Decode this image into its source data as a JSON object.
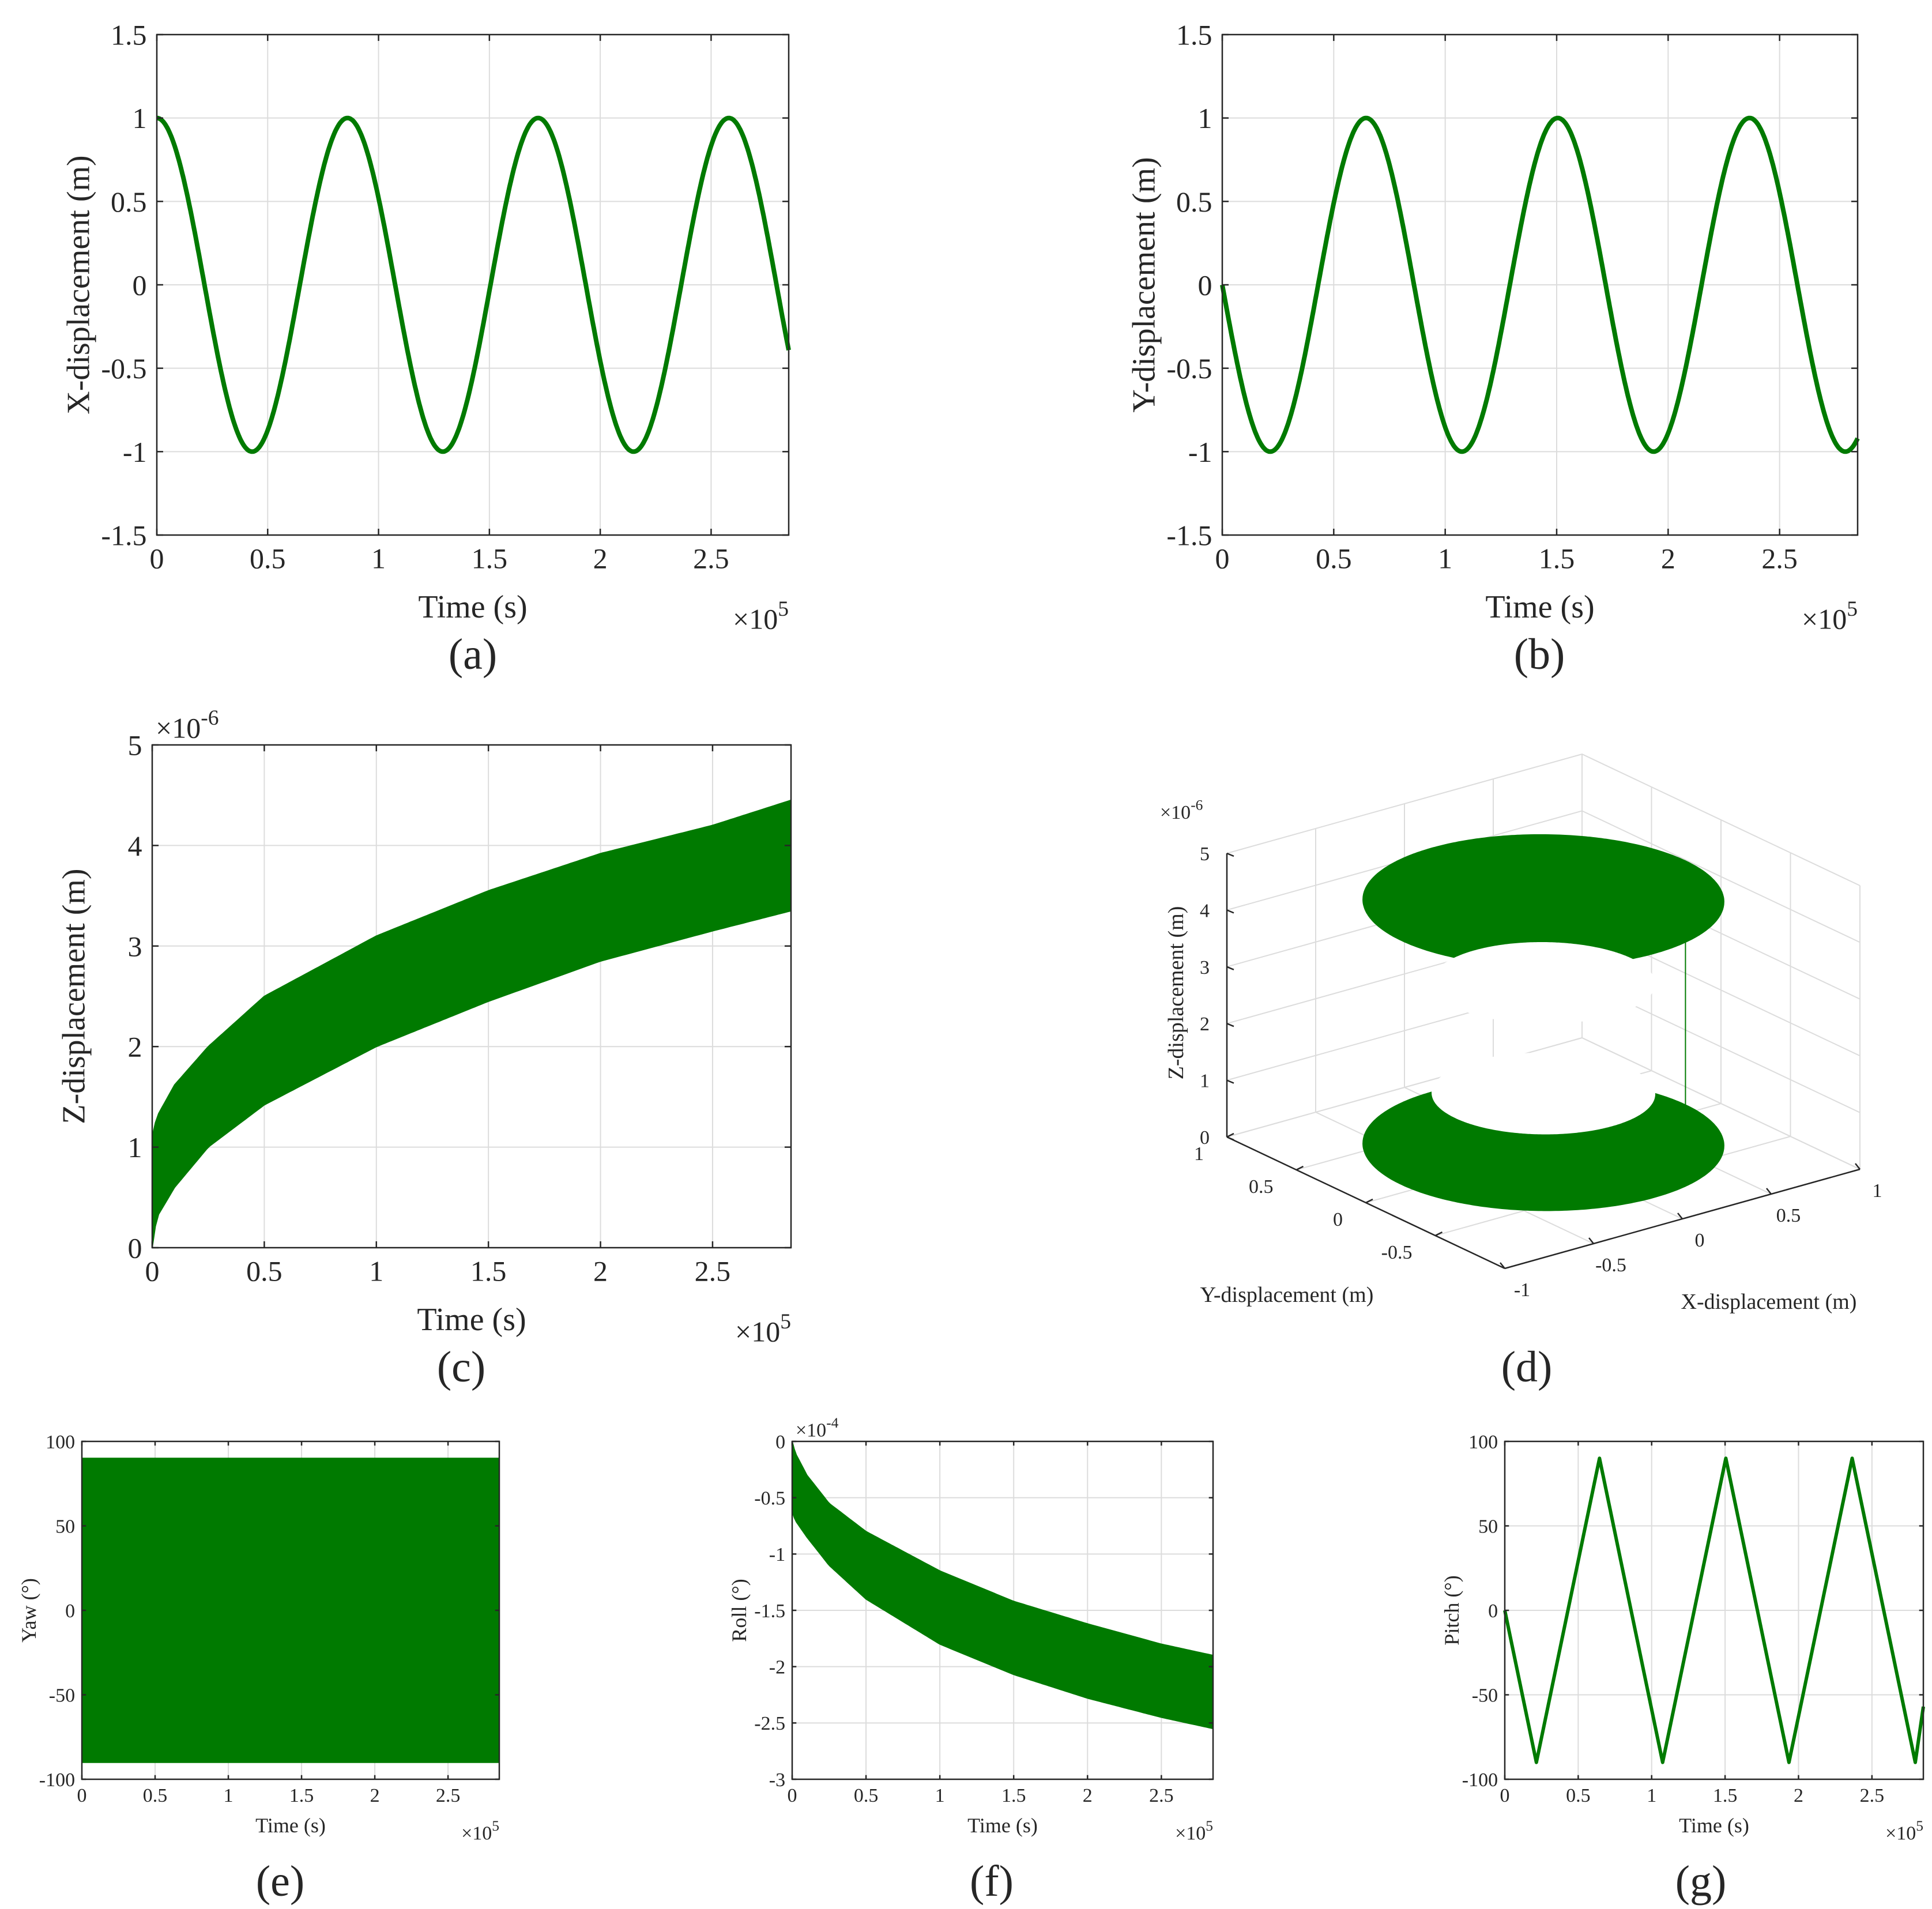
{
  "colors": {
    "series": "#007a00",
    "grid": "#dcdcdc",
    "axis": "#262626"
  },
  "chart_data": [
    {
      "id": "a",
      "panel_label": "(a)",
      "type": "line",
      "xlabel": "Time (s)",
      "ylabel": "X-displacement (m)",
      "xlim": [
        0,
        2.85
      ],
      "ylim": [
        -1.5,
        1.5
      ],
      "xticks": [
        "0",
        "0.5",
        "1",
        "1.5",
        "2",
        "2.5"
      ],
      "xtick_values": [
        0,
        0.5,
        1,
        1.5,
        2,
        2.5
      ],
      "yticks": [
        "-1.5",
        "-1",
        "-0.5",
        "0",
        "0.5",
        "1",
        "1.5"
      ],
      "ytick_values": [
        -1.5,
        -1,
        -0.5,
        0,
        0.5,
        1,
        1.5
      ],
      "x_exponent_label": "×10",
      "x_exponent": "5",
      "grid": true,
      "series": [
        {
          "x": [
            0,
            0.215,
            0.43,
            0.645,
            0.86,
            1.075,
            1.29,
            1.505,
            1.72,
            1.935,
            2.15,
            2.365,
            2.58,
            2.85
          ],
          "y": [
            1,
            0,
            -1,
            0,
            1,
            0,
            -1,
            0,
            1,
            0,
            -1,
            0,
            1,
            -0.53
          ]
        }
      ]
    },
    {
      "id": "b",
      "panel_label": "(b)",
      "type": "line",
      "xlabel": "Time (s)",
      "ylabel": "Y-displacement (m)",
      "xlim": [
        0,
        2.85
      ],
      "ylim": [
        -1.5,
        1.5
      ],
      "xticks": [
        "0",
        "0.5",
        "1",
        "1.5",
        "2",
        "2.5"
      ],
      "xtick_values": [
        0,
        0.5,
        1,
        1.5,
        2,
        2.5
      ],
      "yticks": [
        "-1.5",
        "-1",
        "-0.5",
        "0",
        "0.5",
        "1",
        "1.5"
      ],
      "ytick_values": [
        -1.5,
        -1,
        -0.5,
        0,
        0.5,
        1,
        1.5
      ],
      "x_exponent_label": "×10",
      "x_exponent": "5",
      "grid": true,
      "series": [
        {
          "x": [
            0,
            0.215,
            0.43,
            0.645,
            0.86,
            1.075,
            1.29,
            1.505,
            1.72,
            1.935,
            2.15,
            2.365,
            2.58,
            2.85
          ],
          "y": [
            0,
            -1,
            0,
            1,
            0,
            -1,
            0,
            1,
            0,
            -1,
            0,
            1,
            0,
            -0.85
          ]
        }
      ]
    },
    {
      "id": "c",
      "panel_label": "(c)",
      "type": "area",
      "xlabel": "Time (s)",
      "ylabel": "Z-displacement (m)",
      "xlim": [
        0,
        2.85
      ],
      "ylim": [
        0,
        5
      ],
      "xticks": [
        "0",
        "0.5",
        "1",
        "1.5",
        "2",
        "2.5"
      ],
      "xtick_values": [
        0,
        0.5,
        1,
        1.5,
        2,
        2.5
      ],
      "yticks": [
        "0",
        "1",
        "2",
        "3",
        "4",
        "5"
      ],
      "ytick_values": [
        0,
        1,
        2,
        3,
        4,
        5
      ],
      "x_exponent_label": "×10",
      "x_exponent": "5",
      "y_exponent_label": "×10",
      "y_exponent": "-6",
      "grid": true,
      "band": {
        "x": [
          0,
          0.02,
          0.1,
          0.25,
          0.5,
          1.0,
          1.5,
          2.0,
          2.5,
          2.85
        ],
        "lower": [
          0,
          0.3,
          0.6,
          1.0,
          1.42,
          2.0,
          2.45,
          2.85,
          3.15,
          3.35
        ],
        "upper": [
          1.1,
          1.3,
          1.62,
          2.0,
          2.5,
          3.1,
          3.55,
          3.92,
          4.2,
          4.45
        ]
      }
    },
    {
      "id": "d",
      "panel_label": "(d)",
      "type": "line",
      "xlabel": "X-displacement (m)",
      "ylabel": "Y-displacement (m)",
      "zlabel": "Z-displacement (m)",
      "xticks": [
        "-1",
        "-0.5",
        "0",
        "0.5",
        "1"
      ],
      "xtick_values": [
        -1,
        -0.5,
        0,
        0.5,
        1
      ],
      "yticks": [
        "-0.5",
        "0",
        "0.5",
        "1"
      ],
      "ytick_values": [
        -0.5,
        0,
        0.5,
        1
      ],
      "zticks": [
        "0",
        "1",
        "2",
        "3",
        "4",
        "5"
      ],
      "ztick_values": [
        0,
        1,
        2,
        3,
        4,
        5
      ],
      "z_exponent_label": "×10",
      "z_exponent": "-6",
      "zlim": [
        0,
        5
      ],
      "grid": true,
      "description_series": "helical trajectory: x=cos, y=-sin, z band rising to 4.4e-6"
    },
    {
      "id": "e",
      "panel_label": "(e)",
      "type": "area",
      "xlabel": "Time (s)",
      "ylabel": "Yaw (°)",
      "xlim": [
        0,
        2.85
      ],
      "ylim": [
        -100,
        100
      ],
      "xticks": [
        "0",
        "0.5",
        "1",
        "1.5",
        "2",
        "2.5"
      ],
      "xtick_values": [
        0,
        0.5,
        1,
        1.5,
        2,
        2.5
      ],
      "yticks": [
        "-100",
        "-50",
        "0",
        "50",
        "100"
      ],
      "ytick_values": [
        -100,
        -50,
        0,
        50,
        100
      ],
      "x_exponent_label": "×10",
      "x_exponent": "5",
      "grid": true,
      "band": {
        "x": [
          0,
          2.85
        ],
        "lower": [
          -90,
          -90
        ],
        "upper": [
          90,
          90
        ]
      }
    },
    {
      "id": "f",
      "panel_label": "(f)",
      "type": "area",
      "xlabel": "Time (s)",
      "ylabel": "Roll (°)",
      "xlim": [
        0,
        2.85
      ],
      "ylim": [
        -3,
        0
      ],
      "xticks": [
        "0",
        "0.5",
        "1",
        "1.5",
        "2",
        "2.5"
      ],
      "xtick_values": [
        0,
        0.5,
        1,
        1.5,
        2,
        2.5
      ],
      "yticks": [
        "-3",
        "-2.5",
        "-2",
        "-1.5",
        "-1",
        "-0.5",
        "0"
      ],
      "ytick_values": [
        -3,
        -2.5,
        -2,
        -1.5,
        -1,
        -0.5,
        0
      ],
      "x_exponent_label": "×10",
      "x_exponent": "5",
      "y_exponent_label": "×10",
      "y_exponent": "-4",
      "grid": true,
      "band": {
        "x": [
          0,
          0.02,
          0.1,
          0.25,
          0.5,
          1.0,
          1.5,
          2.0,
          2.5,
          2.85
        ],
        "upper": [
          0,
          -0.1,
          -0.3,
          -0.55,
          -0.8,
          -1.15,
          -1.42,
          -1.62,
          -1.8,
          -1.9
        ],
        "lower": [
          -0.62,
          -0.7,
          -0.85,
          -1.1,
          -1.4,
          -1.8,
          -2.07,
          -2.28,
          -2.45,
          -2.55
        ]
      }
    },
    {
      "id": "g",
      "panel_label": "(g)",
      "type": "line",
      "xlabel": "Time (s)",
      "ylabel": "Pitch (°)",
      "xlim": [
        0,
        2.85
      ],
      "ylim": [
        -100,
        100
      ],
      "xticks": [
        "0",
        "0.5",
        "1",
        "1.5",
        "2",
        "2.5"
      ],
      "xtick_values": [
        0,
        0.5,
        1,
        1.5,
        2,
        2.5
      ],
      "yticks": [
        "-100",
        "-50",
        "0",
        "50",
        "100"
      ],
      "ytick_values": [
        -100,
        -50,
        0,
        50,
        100
      ],
      "x_exponent_label": "×10",
      "x_exponent": "5",
      "grid": true,
      "series": [
        {
          "x": [
            0,
            0.215,
            0.645,
            1.075,
            1.505,
            1.935,
            2.365,
            2.795,
            2.85
          ],
          "y": [
            0,
            -90,
            90,
            -90,
            90,
            -90,
            90,
            -90,
            -57
          ]
        }
      ]
    }
  ]
}
